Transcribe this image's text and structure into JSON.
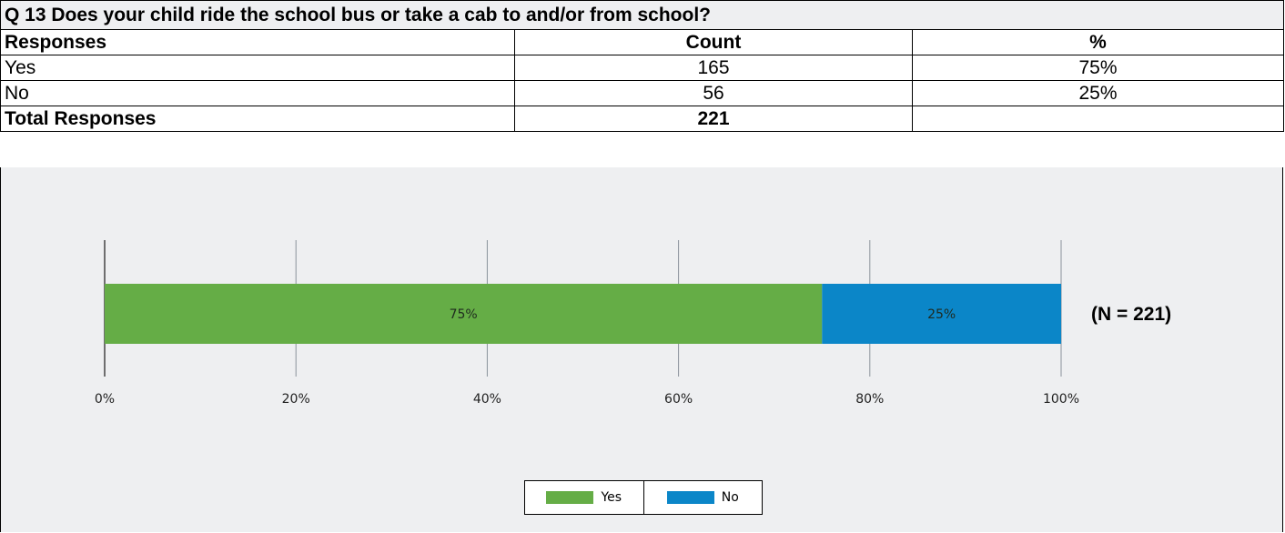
{
  "table": {
    "question": "Q 13 Does your child ride the school bus or take a cab to and/or from school?",
    "headers": [
      "Responses",
      "Count",
      "%"
    ],
    "rows": [
      {
        "response": "Yes",
        "count": "165",
        "pct": "75%"
      },
      {
        "response": "No",
        "count": "56",
        "pct": "25%"
      }
    ],
    "total_label": "Total Responses",
    "total_count": "221",
    "total_pct": ""
  },
  "chart_data": {
    "type": "bar",
    "orientation": "horizontal-stacked",
    "series": [
      {
        "name": "Yes",
        "value": 75,
        "label": "75%",
        "color": "#65ad46"
      },
      {
        "name": "No",
        "value": 25,
        "label": "25%",
        "color": "#0b86c8"
      }
    ],
    "x_ticks": [
      "0%",
      "20%",
      "40%",
      "60%",
      "80%",
      "100%"
    ],
    "xlim": [
      0,
      100
    ],
    "annotation": "(N = 221)",
    "grid": true,
    "legend_position": "bottom-center"
  }
}
